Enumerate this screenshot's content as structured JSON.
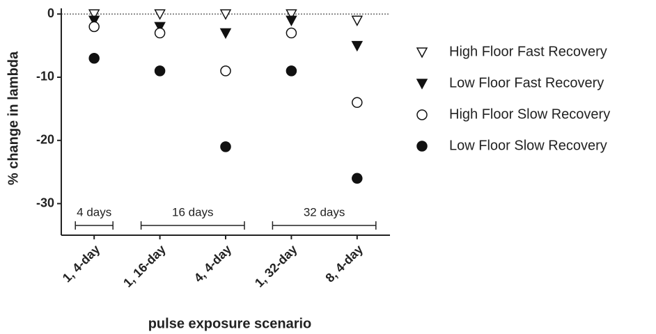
{
  "chart_data": {
    "type": "scatter",
    "y_label": "% change in lambda",
    "x_label": "pulse exposure scenario",
    "categories": [
      "1, 4-day",
      "1, 16-day",
      "4, 4-day",
      "1, 32-day",
      "8, 4-day"
    ],
    "series": [
      {
        "name": "High Floor Fast Recovery",
        "color": "#111111",
        "marker": "triangle-down",
        "filled": false,
        "values": [
          0,
          0,
          0,
          0,
          -1
        ]
      },
      {
        "name": "Low Floor Fast Recovery",
        "color": "#111111",
        "marker": "triangle-down",
        "filled": true,
        "values": [
          -1,
          -2,
          -3,
          -1,
          -5
        ]
      },
      {
        "name": "High Floor Slow Recovery",
        "color": "#111111",
        "marker": "circle",
        "filled": false,
        "values": [
          -2,
          -3,
          -9,
          -3,
          -14
        ]
      },
      {
        "name": "Low Floor Slow Recovery",
        "color": "#111111",
        "marker": "circle",
        "filled": true,
        "values": [
          -7,
          -9,
          -21,
          -9,
          -26
        ]
      }
    ],
    "annotations": [
      "4 days",
      "16 days",
      "32 days"
    ],
    "ylim": [
      -35,
      0.9
    ],
    "yticks": [
      0,
      -10,
      -20,
      -30
    ],
    "zero_line": true,
    "legend": "right"
  }
}
